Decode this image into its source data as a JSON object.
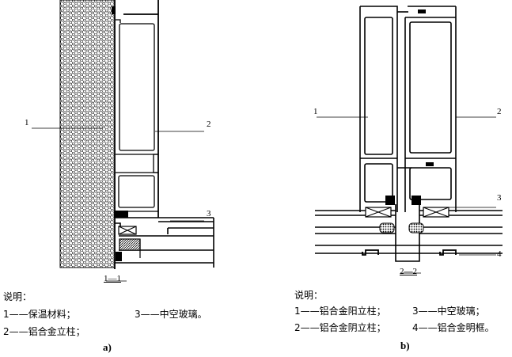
{
  "diagram_a": {
    "callouts": {
      "c1": "1",
      "c2": "2",
      "c3": "3"
    },
    "section_label": "1—1",
    "legend_title": "说明：",
    "legend": {
      "item1": "1——保温材料；",
      "item2": "2——铝合金立柱；",
      "item3": "3——中空玻璃。"
    },
    "caption": "a)"
  },
  "diagram_b": {
    "callouts": {
      "c1": "1",
      "c2": "2",
      "c3": "3",
      "c4": "4"
    },
    "section_label": "2—2",
    "legend_title": "说明：",
    "legend": {
      "item1": "1——铝合金阳立柱；",
      "item2": "2——铝合金阴立柱；",
      "item3": "3——中空玻璃；",
      "item4": "4——铝合金明框。"
    },
    "caption": "b)"
  }
}
